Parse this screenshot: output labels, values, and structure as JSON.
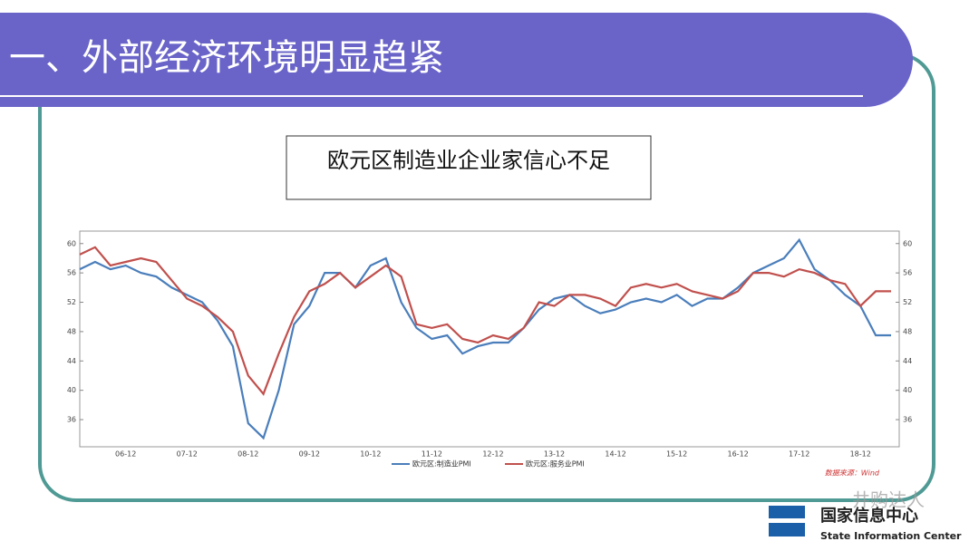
{
  "slide": {
    "title": "一、外部经济环境明显趋紧",
    "subtitle": "欧元区制造业企业家信心不足",
    "logo_cn": "国家信息中心",
    "logo_en": "State Information Center",
    "watermark": "井购达人"
  },
  "chart_data": {
    "type": "line",
    "source": "数据来源：Wind",
    "categories": [
      null,
      null,
      null,
      "06-12",
      null,
      null,
      null,
      "07-12",
      null,
      null,
      null,
      "08-12",
      null,
      null,
      null,
      "09-12",
      null,
      null,
      null,
      "10-12",
      null,
      null,
      null,
      "11-12",
      null,
      null,
      null,
      "12-12",
      null,
      null,
      null,
      "13-12",
      null,
      null,
      null,
      "14-12",
      null,
      null,
      null,
      "15-12",
      null,
      null,
      null,
      "16-12",
      null,
      null,
      null,
      "17-12",
      null,
      null,
      null,
      "18-12",
      null,
      null
    ],
    "series": [
      {
        "name": "欧元区:制造业PMI",
        "color": "#4a7ebb",
        "values": [
          56.5,
          57.5,
          56.5,
          57,
          56,
          55.5,
          54,
          53,
          52,
          49.5,
          46,
          35.5,
          33.5,
          40,
          49,
          51.5,
          56,
          56,
          54,
          57,
          58,
          52,
          48.5,
          47,
          47.5,
          45,
          46,
          46.5,
          46.5,
          48.5,
          51,
          52.5,
          53,
          51.5,
          50.5,
          51,
          52,
          52.5,
          52,
          53,
          51.5,
          52.5,
          52.5,
          54,
          56,
          57,
          58,
          60.5,
          56.5,
          55,
          53,
          51.5,
          47.5,
          47.5
        ]
      },
      {
        "name": "欧元区:服务业PMI",
        "color": "#c0504d",
        "values": [
          58.5,
          59.5,
          57,
          57.5,
          58,
          57.5,
          55,
          52.5,
          51.5,
          50,
          48,
          42,
          39.5,
          45,
          50,
          53.5,
          54.5,
          56,
          54,
          55.5,
          57,
          55.5,
          49,
          48.5,
          49,
          47,
          46.5,
          47.5,
          47,
          48.5,
          52,
          51.5,
          53,
          53,
          52.5,
          51.5,
          54,
          54.5,
          54,
          54.5,
          53.5,
          53,
          52.5,
          53.5,
          56,
          56,
          55.5,
          56.5,
          56,
          55,
          54.5,
          51.5,
          53.5,
          53.5
        ]
      }
    ],
    "ylim": [
      32.3,
      61.7
    ],
    "yticks": [
      36,
      40,
      44,
      48,
      52,
      56,
      60
    ]
  }
}
